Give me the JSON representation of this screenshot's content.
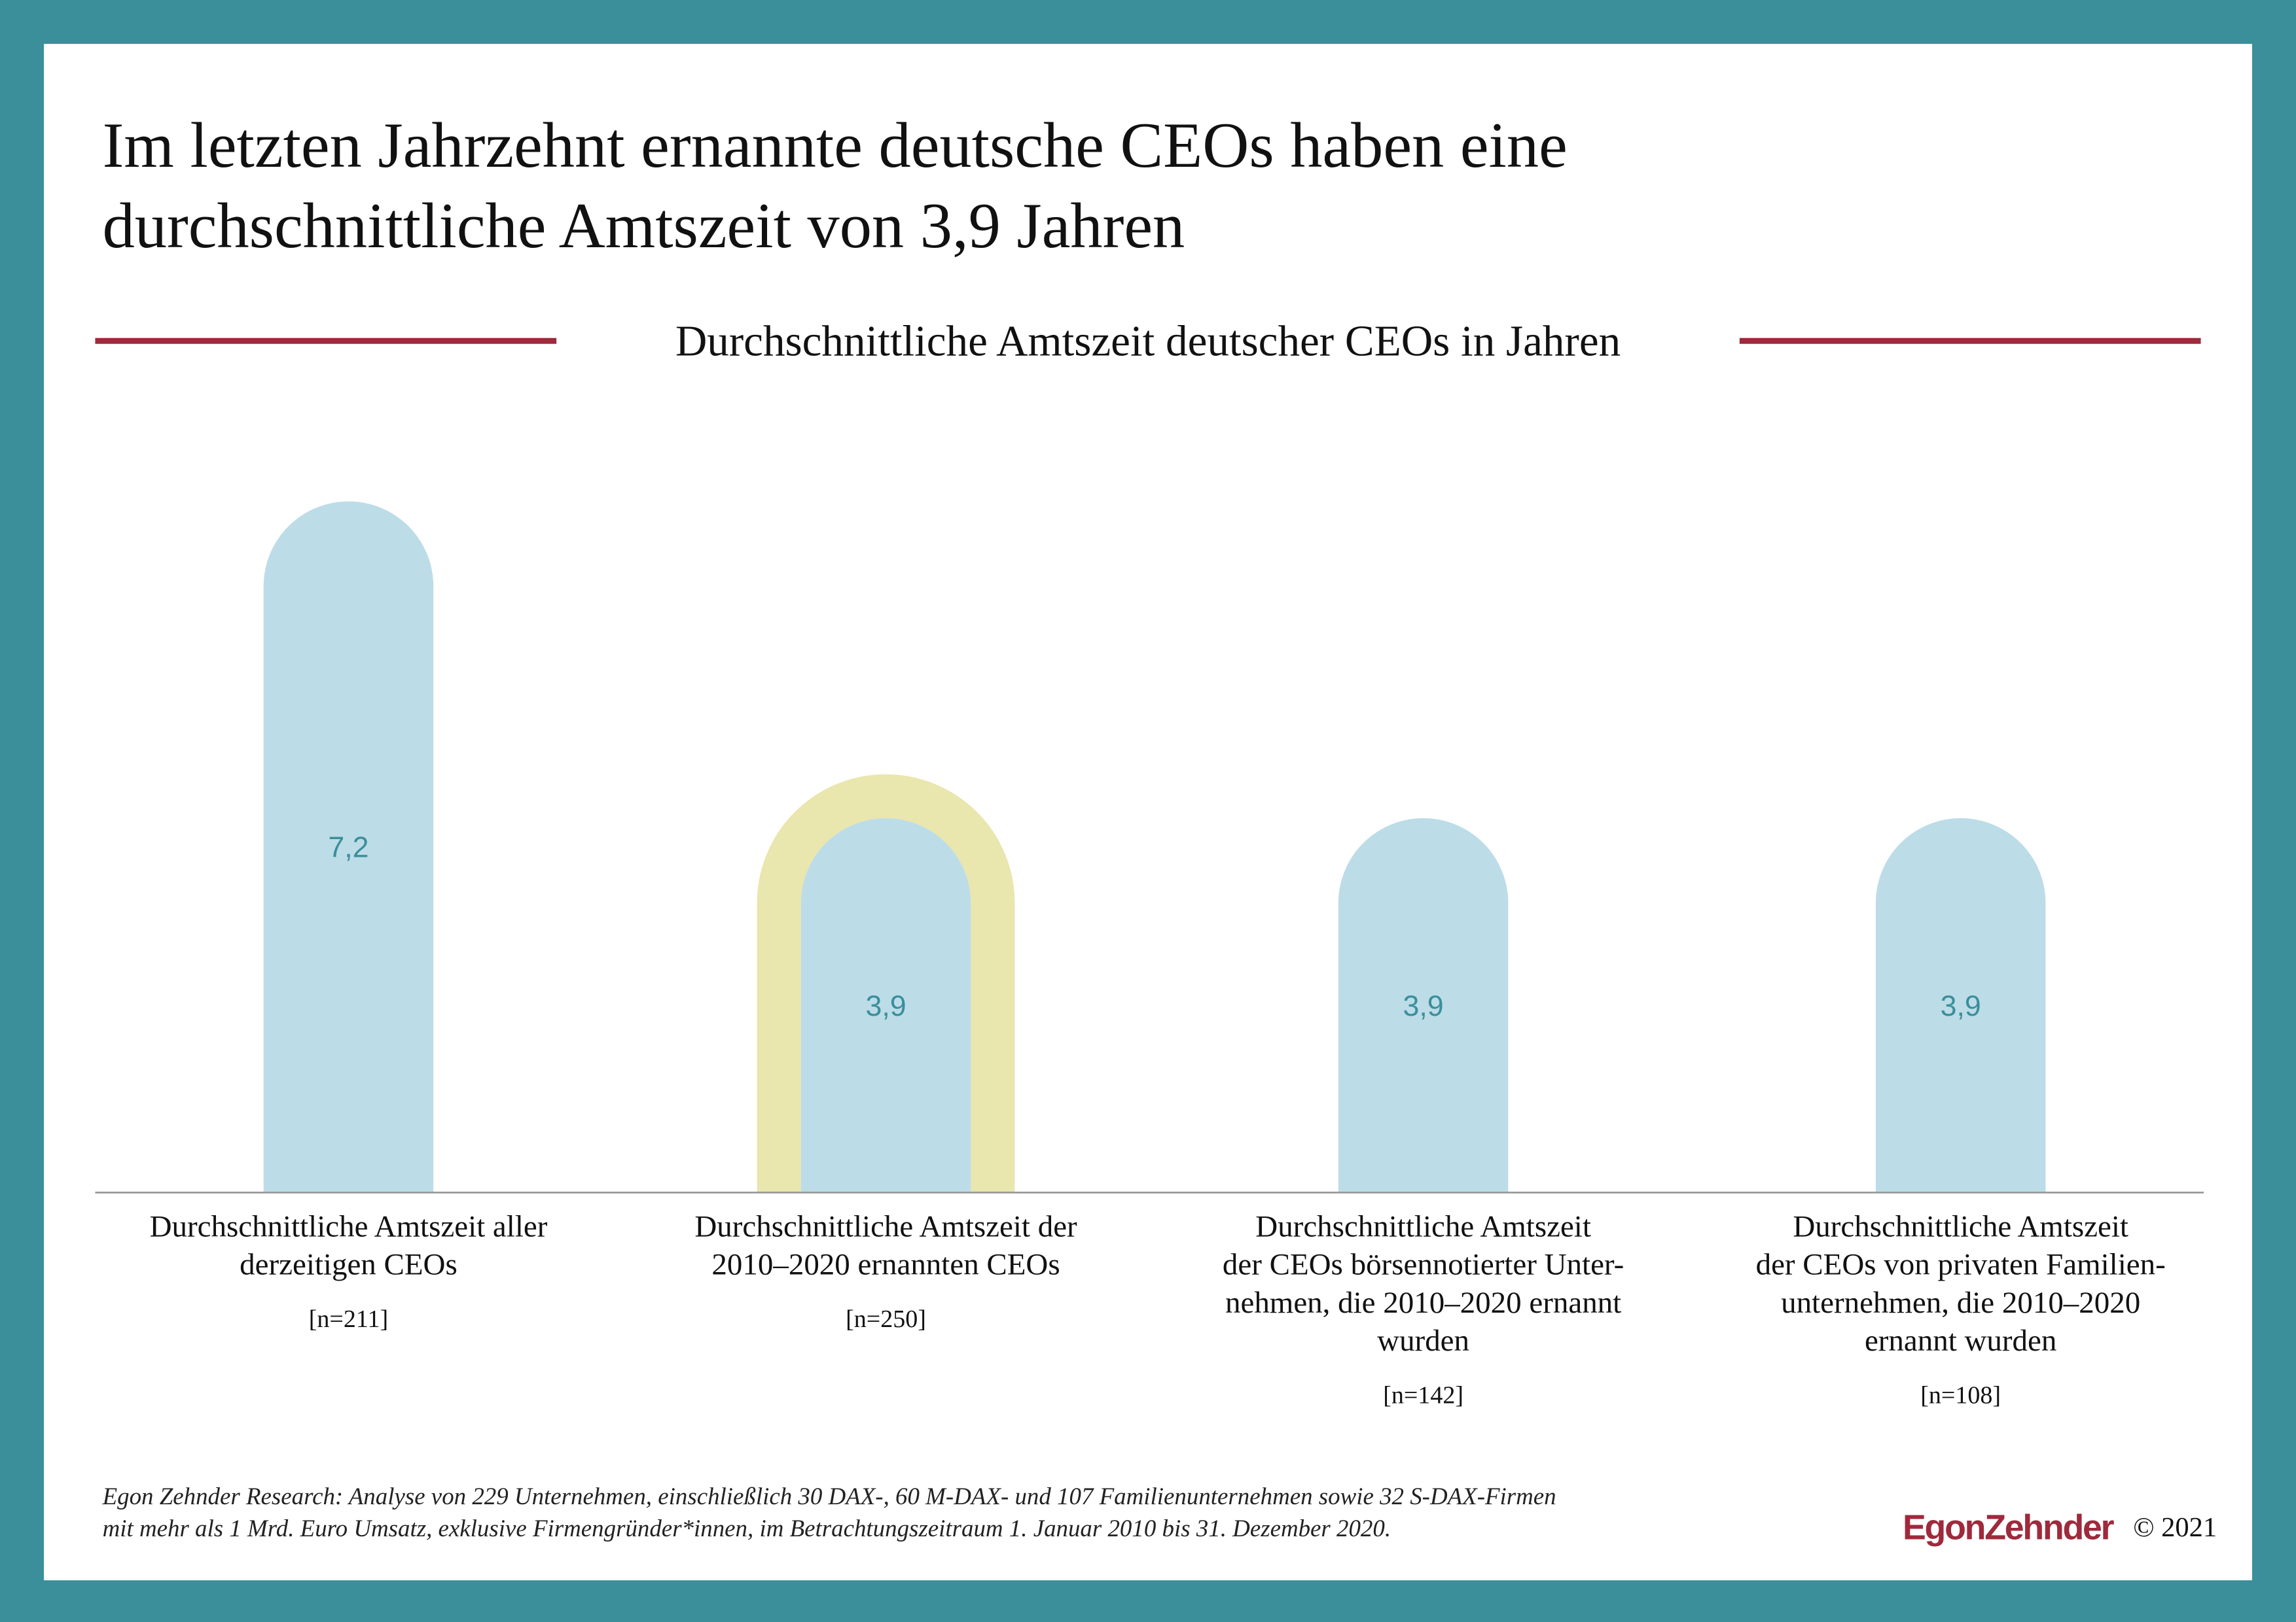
{
  "chart_data": {
    "type": "bar",
    "title": [
      "Im letzten Jahrzehnt ernannte deutsche CEOs haben eine",
      "durchschnittliche Amtszeit von 3,9 Jahren"
    ],
    "subtitle": "Durchschnittliche Amtszeit deutscher CEOs in Jahren",
    "categories": [
      [
        "Durchschnittliche Amtszeit aller",
        "derzeitigen CEOs"
      ],
      [
        "Durchschnittliche Amtszeit der",
        "2010–2020 ernannten CEOs"
      ],
      [
        "Durchschnittliche Amtszeit",
        "der CEOs börsennotierter Unter-",
        "nehmen, die 2010–2020 ernannt",
        "wurden"
      ],
      [
        "Durchschnittliche Amtszeit",
        "der CEOs von privaten Familien-",
        "unternehmen, die 2010–2020",
        "ernannt wurden"
      ]
    ],
    "sample_sizes": [
      "[n=211]",
      "[n=250]",
      "[n=142]",
      "[n=108]"
    ],
    "values": [
      7.2,
      3.9,
      3.9,
      3.9
    ],
    "value_labels": [
      "7,2",
      "3,9",
      "3,9",
      "3,9"
    ],
    "color": "#bcdce8",
    "highlight": 1,
    "highlight_color": "#e9e6ae",
    "footnote": [
      "Egon Zehnder Research: Analyse von 229 Unternehmen, einschließlich 30 DAX-, 60 M-DAX- und 107 Familienunternehmen sowie 32 S-DAX-Firmen",
      "mit mehr als 1 Mrd. Euro Umsatz, exklusive Firmengründer*innen, im Betrachtungszeitraum 1. Januar 2010 bis 31. Dezember 2020."
    ],
    "logo": "EgonZehnder",
    "copyright": "© 2021"
  }
}
